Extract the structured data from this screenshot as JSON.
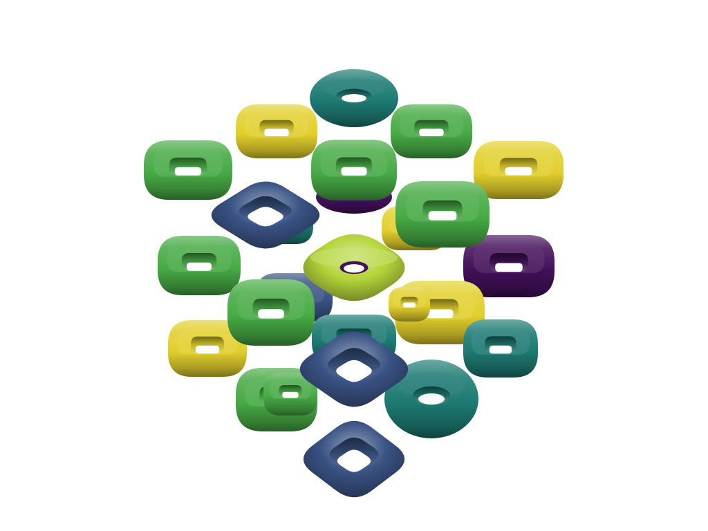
{
  "scene": {
    "background": "#ffffff",
    "palette": {
      "purple": "#43105a",
      "navy": "#3a5384",
      "teal": "#1d7a72",
      "green": "#47aa45",
      "lime": "#b5d43a",
      "yellow": "#e2cf2c"
    },
    "objects": [
      {
        "kind": "round-torus",
        "color": "purple"
      },
      {
        "kind": "rounded-square-torus",
        "color": "purple"
      },
      {
        "kind": "rounded-square-torus",
        "color": "teal"
      },
      {
        "kind": "rounded-square-torus",
        "color": "navy"
      },
      {
        "kind": "rounded-square-torus",
        "color": "yellow"
      },
      {
        "kind": "rounded-square-torus",
        "color": "teal"
      },
      {
        "kind": "round-torus",
        "color": "teal"
      },
      {
        "kind": "rounded-square-torus",
        "color": "yellow"
      },
      {
        "kind": "rounded-square-torus",
        "color": "green"
      },
      {
        "kind": "rounded-square-torus",
        "color": "yellow"
      },
      {
        "kind": "rounded-square-torus",
        "color": "green"
      },
      {
        "kind": "rounded-square-torus",
        "color": "yellow"
      },
      {
        "kind": "rounded-square-torus",
        "color": "green"
      },
      {
        "kind": "rounded-square-torus",
        "color": "green"
      },
      {
        "kind": "diamond-torus",
        "color": "navy"
      },
      {
        "kind": "rounded-square-torus",
        "color": "green"
      },
      {
        "kind": "rounded-square-torus",
        "color": "green"
      },
      {
        "kind": "saddle-torus",
        "color": "lime"
      },
      {
        "kind": "rounded-square-torus",
        "color": "green"
      },
      {
        "kind": "rounded-square-torus",
        "color": "yellow"
      },
      {
        "kind": "rounded-square-torus",
        "color": "yellow"
      },
      {
        "kind": "rounded-square-torus",
        "color": "teal"
      },
      {
        "kind": "round-torus",
        "color": "teal"
      },
      {
        "kind": "rounded-square-torus",
        "color": "green"
      },
      {
        "kind": "diamond-torus",
        "color": "navy"
      },
      {
        "kind": "diamond-torus",
        "color": "navy"
      }
    ]
  }
}
